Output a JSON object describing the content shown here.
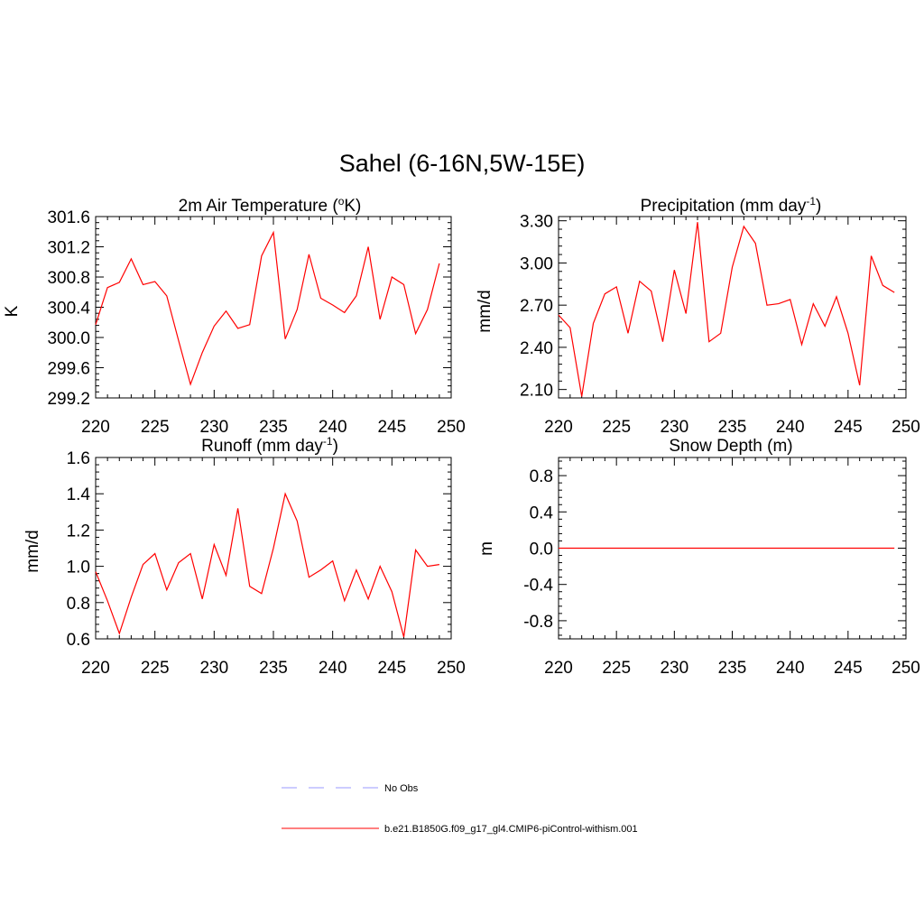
{
  "figure": {
    "title": "Sahel (6-16N,5W-15E)",
    "series_color": "#ff0000",
    "obs_color": "#9999ff"
  },
  "legend": [
    {
      "label": "No Obs",
      "style": "dashed",
      "color": "#9999ff"
    },
    {
      "label": "b.e21.B1850G.f09_g17_gl4.CMIP6-piControl-withism.001",
      "style": "solid",
      "color": "#ff0000"
    }
  ],
  "chart_data": [
    {
      "type": "line",
      "title_main": "2m Air Temperature (",
      "title_sup": "o",
      "title_tail": "K)",
      "ylabel": "K",
      "xlim": [
        220,
        250
      ],
      "ylim": [
        299.2,
        301.6
      ],
      "xticks": [
        "220",
        "225",
        "230",
        "235",
        "240",
        "245",
        "250"
      ],
      "yticks": [
        "299.2",
        "299.6",
        "300.0",
        "300.4",
        "300.8",
        "301.2",
        "301.6"
      ],
      "series": [
        {
          "x": [
            220,
            221,
            222,
            223,
            224,
            225,
            226,
            227,
            228,
            229,
            230,
            231,
            232,
            233,
            234,
            235,
            236,
            237,
            238,
            239,
            240,
            241,
            242,
            243,
            244,
            245,
            246,
            247,
            248,
            249
          ],
          "values": [
            300.17,
            300.66,
            300.73,
            301.04,
            300.7,
            300.74,
            300.55,
            299.96,
            299.38,
            299.8,
            300.15,
            300.35,
            300.12,
            300.17,
            301.08,
            301.39,
            299.98,
            300.37,
            301.1,
            300.52,
            300.43,
            300.33,
            300.55,
            301.2,
            300.24,
            300.8,
            300.7,
            300.05,
            300.37,
            300.98
          ]
        }
      ]
    },
    {
      "type": "line",
      "title_main": "Precipitation (mm day",
      "title_sup": "-1",
      "title_tail": ")",
      "ylabel": "mm/d",
      "xlim": [
        220,
        250
      ],
      "ylim": [
        2.04,
        3.33
      ],
      "xticks": [
        "220",
        "225",
        "230",
        "235",
        "240",
        "245",
        "250"
      ],
      "yticks": [
        "2.10",
        "2.40",
        "2.70",
        "3.00",
        "3.30"
      ],
      "series": [
        {
          "x": [
            220,
            221,
            222,
            223,
            224,
            225,
            226,
            227,
            228,
            229,
            230,
            231,
            232,
            233,
            234,
            235,
            236,
            237,
            238,
            239,
            240,
            241,
            242,
            243,
            244,
            245,
            246,
            247,
            248,
            249
          ],
          "values": [
            2.63,
            2.54,
            2.05,
            2.57,
            2.78,
            2.83,
            2.5,
            2.87,
            2.8,
            2.44,
            2.95,
            2.64,
            3.29,
            2.44,
            2.5,
            2.97,
            3.26,
            3.14,
            2.7,
            2.71,
            2.74,
            2.42,
            2.71,
            2.55,
            2.76,
            2.5,
            2.13,
            3.05,
            2.84,
            2.79
          ]
        }
      ]
    },
    {
      "type": "line",
      "title_main": "Runoff (mm day",
      "title_sup": "-1",
      "title_tail": ")",
      "ylabel": "mm/d",
      "xlim": [
        220,
        250
      ],
      "ylim": [
        0.6,
        1.6
      ],
      "xticks": [
        "220",
        "225",
        "230",
        "235",
        "240",
        "245",
        "250"
      ],
      "yticks": [
        "0.6",
        "0.8",
        "1.0",
        "1.2",
        "1.4",
        "1.6"
      ],
      "series": [
        {
          "x": [
            220,
            221,
            222,
            223,
            224,
            225,
            226,
            227,
            228,
            229,
            230,
            231,
            232,
            233,
            234,
            235,
            236,
            237,
            238,
            239,
            240,
            241,
            242,
            243,
            244,
            245,
            246,
            247,
            248,
            249
          ],
          "values": [
            0.97,
            0.81,
            0.63,
            0.83,
            1.01,
            1.07,
            0.87,
            1.02,
            1.07,
            0.82,
            1.12,
            0.95,
            1.32,
            0.89,
            0.85,
            1.1,
            1.4,
            1.25,
            0.94,
            0.98,
            1.03,
            0.81,
            0.98,
            0.82,
            1.0,
            0.86,
            0.61,
            1.09,
            1.0,
            1.01
          ]
        }
      ]
    },
    {
      "type": "line",
      "title_main": "Snow Depth (m)",
      "title_sup": "",
      "title_tail": "",
      "ylabel": "m",
      "xlim": [
        220,
        250
      ],
      "ylim": [
        -1.0,
        1.0
      ],
      "xticks": [
        "220",
        "225",
        "230",
        "235",
        "240",
        "245",
        "250"
      ],
      "yticks": [
        "-0.8",
        "-0.4",
        "0.0",
        "0.4",
        "0.8"
      ],
      "series": [
        {
          "x": [
            220,
            249
          ],
          "values": [
            0.0,
            0.0
          ]
        }
      ]
    }
  ]
}
